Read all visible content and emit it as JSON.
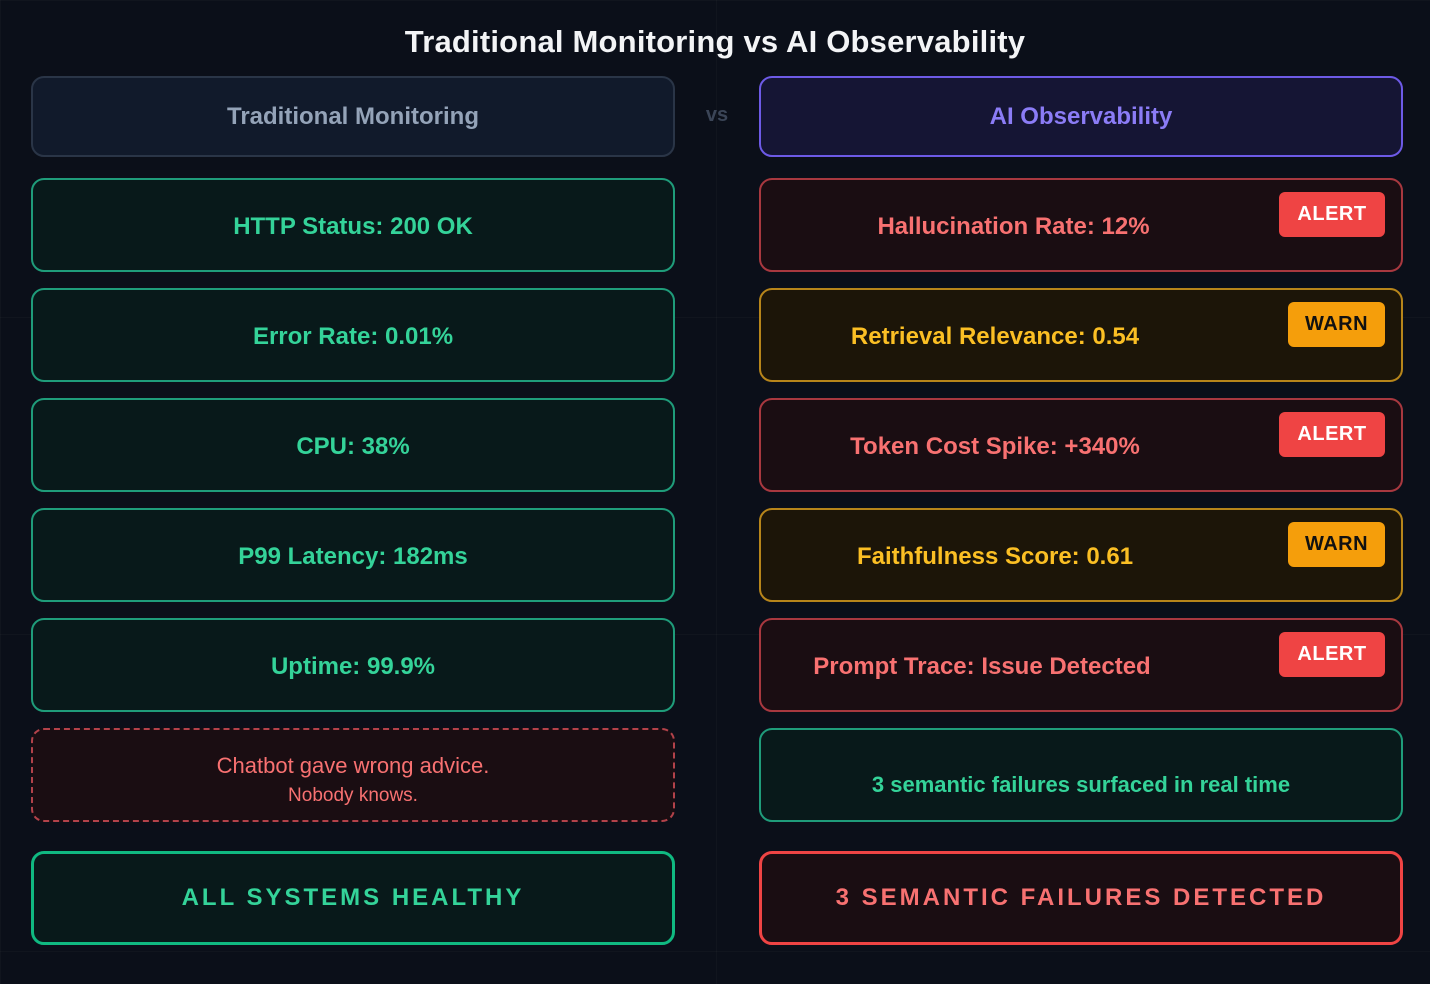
{
  "title": "Traditional Monitoring vs AI Observability",
  "vs_label": "vs",
  "traditional": {
    "header": "Traditional Monitoring",
    "metrics": [
      "HTTP Status: 200 OK",
      "Error Rate: 0.01%",
      "CPU: 38%",
      "P99 Latency: 182ms",
      "Uptime: 99.9%"
    ],
    "blindspot_line1": "Chatbot gave wrong advice.",
    "blindspot_line2": "Nobody knows.",
    "footer": "ALL SYSTEMS HEALTHY"
  },
  "ai": {
    "header": "AI Observability",
    "metrics": [
      {
        "label": "Hallucination Rate: 12%",
        "badge": "ALERT",
        "status": "alert"
      },
      {
        "label": "Retrieval Relevance: 0.54",
        "badge": "WARN",
        "status": "warn"
      },
      {
        "label": "Token Cost Spike: +340%",
        "badge": "ALERT",
        "status": "alert"
      },
      {
        "label": "Faithfulness Score: 0.61",
        "badge": "WARN",
        "status": "warn"
      },
      {
        "label": "Prompt Trace: Issue Detected",
        "badge": "ALERT",
        "status": "alert"
      }
    ],
    "summary": "3 semantic failures surfaced in real time",
    "footer": "3 SEMANTIC FAILURES DETECTED"
  },
  "colors": {
    "healthy": "#34d399",
    "alert": "#ef4444",
    "warn": "#f59e0b",
    "ai_accent": "#8b7cf6"
  }
}
